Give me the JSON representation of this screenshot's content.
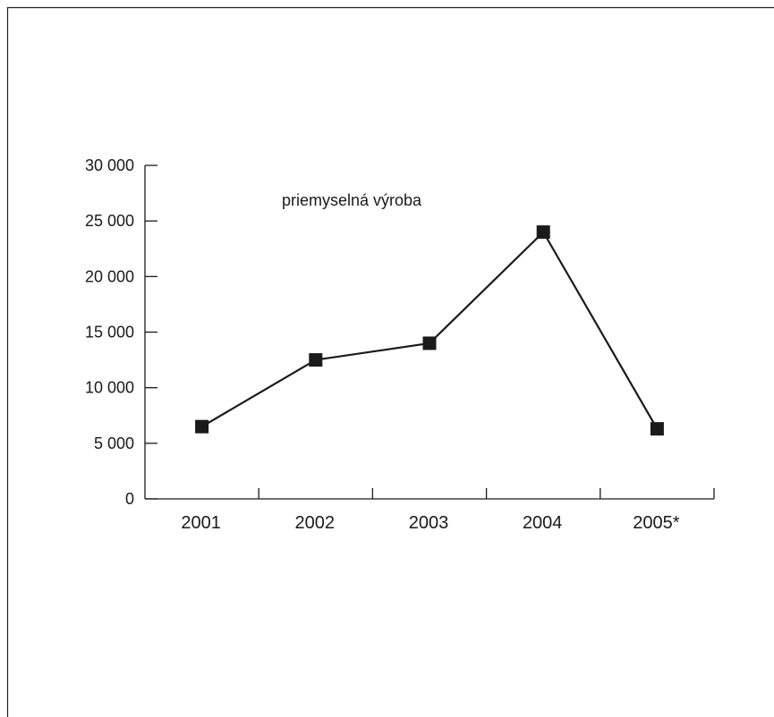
{
  "chart_data": {
    "type": "line",
    "categories": [
      "2001",
      "2002",
      "2003",
      "2004",
      "2005*"
    ],
    "series": [
      {
        "name": "priemyselná výroba",
        "values": [
          6500,
          12500,
          14000,
          24000,
          6300
        ]
      }
    ],
    "ylim": [
      0,
      30000
    ],
    "y_ticks": [
      0,
      5000,
      10000,
      15000,
      20000,
      25000,
      30000
    ],
    "y_tick_labels": [
      "0",
      "5 000",
      "10 000",
      "15 000",
      "20 000",
      "25 000",
      "30 000"
    ],
    "grid": false,
    "marker": "square",
    "line_color": "#1a1a1a",
    "marker_color": "#1a1a1a"
  }
}
